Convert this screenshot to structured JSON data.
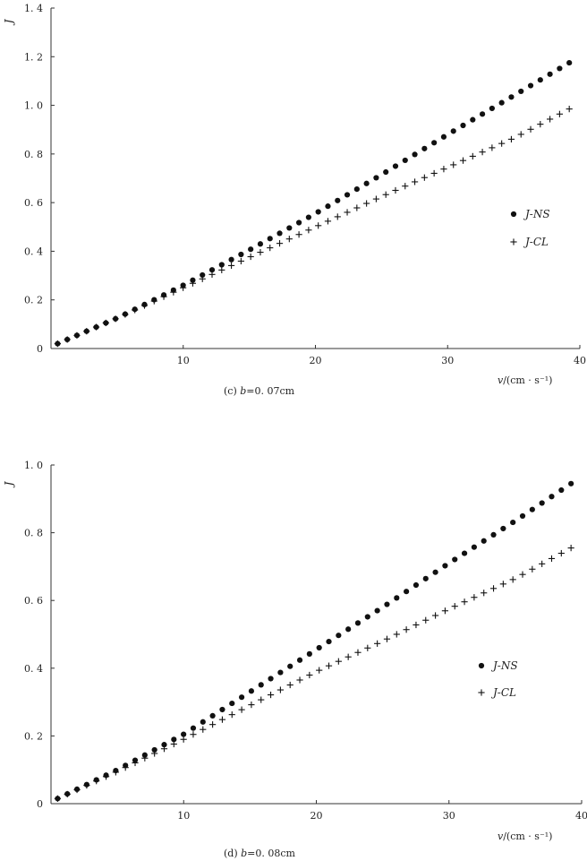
{
  "chart_data": [
    {
      "type": "scatter",
      "caption_prefix": "(c)",
      "caption_var": "b",
      "caption_value": "=0. 07cm",
      "ylabel": "J",
      "xlabel_var": "v",
      "xlabel_unit": "/(cm · s⁻¹)",
      "xlim": [
        0,
        40
      ],
      "ylim": [
        0,
        1.4
      ],
      "xticks": [
        10,
        20,
        30,
        40
      ],
      "xtick_labels": [
        "10",
        "20",
        "30",
        "40"
      ],
      "yticks": [
        0,
        0.2,
        0.4,
        0.6,
        0.8,
        1.0,
        1.2,
        1.4
      ],
      "ytick_labels": [
        "0",
        "0. 2",
        "0. 4",
        "0. 6",
        "0. 8",
        "1. 0",
        "1. 2",
        "1. 4"
      ],
      "grid": false,
      "legend_position": "right",
      "x_range": [
        0.5,
        39.2
      ],
      "series": [
        {
          "name": "J-NS",
          "marker": "dot",
          "color": "#111111",
          "points": [
            [
              0.5,
              0.02
            ],
            [
              5,
              0.125
            ],
            [
              10,
              0.26
            ],
            [
              15,
              0.405
            ],
            [
              20,
              0.555
            ],
            [
              25,
              0.715
            ],
            [
              30,
              0.88
            ],
            [
              35,
              1.04
            ],
            [
              39.2,
              1.175
            ]
          ]
        },
        {
          "name": "J-CL",
          "marker": "plus",
          "color": "#111111",
          "points": [
            [
              0.5,
              0.02
            ],
            [
              5,
              0.125
            ],
            [
              10,
              0.25
            ],
            [
              15,
              0.375
            ],
            [
              20,
              0.5
            ],
            [
              25,
              0.625
            ],
            [
              30,
              0.745
            ],
            [
              35,
              0.865
            ],
            [
              39.2,
              0.985
            ]
          ]
        }
      ]
    },
    {
      "type": "scatter",
      "caption_prefix": "(d)",
      "caption_var": "b",
      "caption_value": "=0. 08cm",
      "ylabel": "J",
      "xlabel_var": "v",
      "xlabel_unit": "/(cm · s⁻¹)",
      "xlim": [
        0,
        40
      ],
      "ylim": [
        0,
        1.0
      ],
      "xticks": [
        10,
        20,
        30,
        40
      ],
      "xtick_labels": [
        "10",
        "20",
        "30",
        "40"
      ],
      "yticks": [
        0,
        0.2,
        0.4,
        0.6,
        0.8,
        1.0
      ],
      "ytick_labels": [
        "0",
        "0. 2",
        "0. 4",
        "0. 6",
        "0. 8",
        "1. 0"
      ],
      "grid": false,
      "legend_position": "right",
      "x_range": [
        0.5,
        39.2
      ],
      "series": [
        {
          "name": "J-NS",
          "marker": "dot",
          "color": "#111111",
          "points": [
            [
              0.5,
              0.015
            ],
            [
              5,
              0.1
            ],
            [
              10,
              0.205
            ],
            [
              15,
              0.33
            ],
            [
              20,
              0.455
            ],
            [
              25,
              0.58
            ],
            [
              30,
              0.71
            ],
            [
              35,
              0.835
            ],
            [
              39.2,
              0.945
            ]
          ]
        },
        {
          "name": "J-CL",
          "marker": "plus",
          "color": "#111111",
          "points": [
            [
              0.5,
              0.015
            ],
            [
              5,
              0.095
            ],
            [
              10,
              0.19
            ],
            [
              15,
              0.29
            ],
            [
              20,
              0.39
            ],
            [
              25,
              0.48
            ],
            [
              30,
              0.575
            ],
            [
              35,
              0.665
            ],
            [
              39.2,
              0.755
            ]
          ]
        }
      ]
    }
  ]
}
